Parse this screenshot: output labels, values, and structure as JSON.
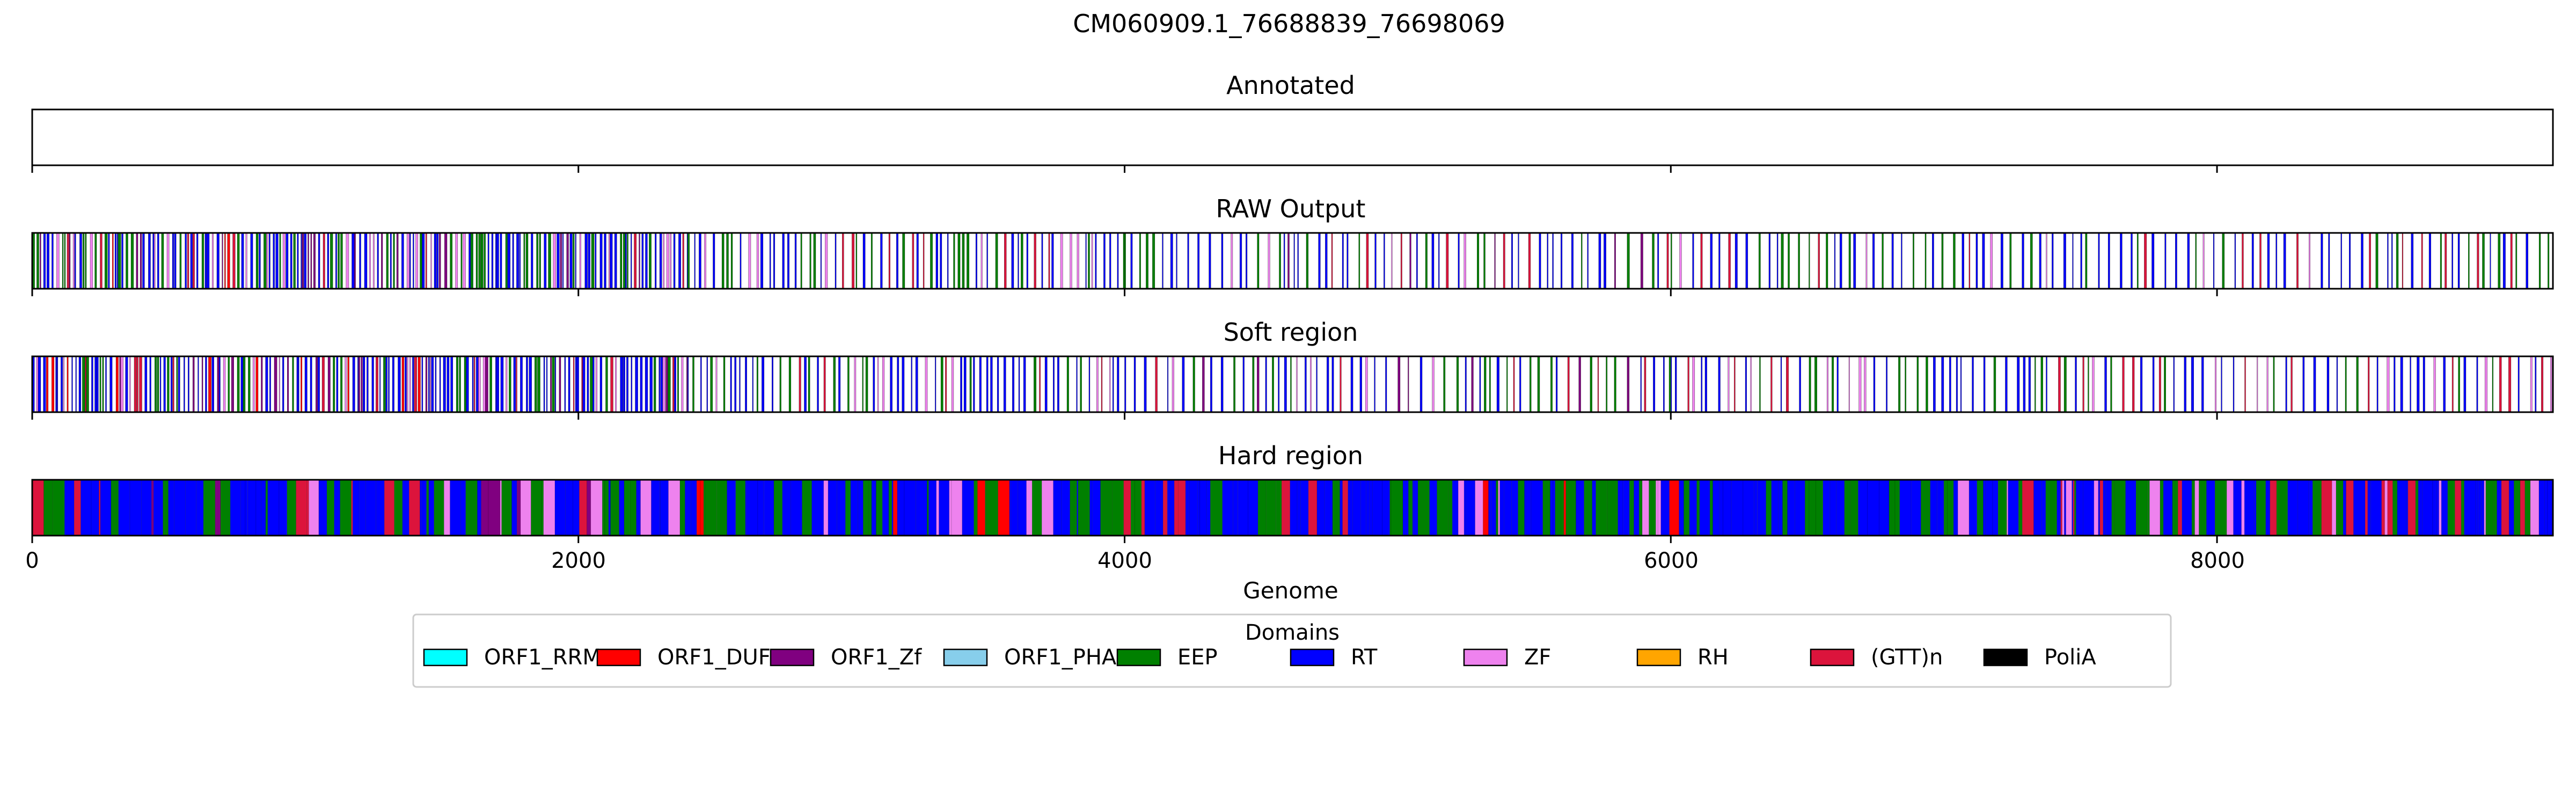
{
  "chart_data": {
    "type": "track",
    "title": "CM060909.1_76688839_76698069",
    "xlabel": "Genome",
    "xlim": [
      0,
      9230
    ],
    "xticks": [
      0,
      2000,
      4000,
      6000,
      8000
    ],
    "xtick_labels": [
      "0",
      "2000",
      "4000",
      "6000",
      "8000"
    ],
    "grid": false,
    "legend": {
      "title": "Domains",
      "placement": "bottom-center",
      "entries": [
        {
          "label": "ORF1_RRM",
          "color": "#00ffff"
        },
        {
          "label": "ORF1_DUF",
          "color": "#ff0000"
        },
        {
          "label": "ORF1_Zf",
          "color": "#800080"
        },
        {
          "label": "ORF1_PHA",
          "color": "#87ceeb"
        },
        {
          "label": "EEP",
          "color": "#008000"
        },
        {
          "label": "RT",
          "color": "#0000ff"
        },
        {
          "label": "ZF",
          "color": "#ee82ee"
        },
        {
          "label": "RH",
          "color": "#ffa500"
        },
        {
          "label": "(GTT)n",
          "color": "#dc143c"
        },
        {
          "label": "PoliA",
          "color": "#000000"
        }
      ]
    },
    "panels": [
      {
        "title": "Annotated",
        "segments": []
      },
      {
        "title": "RAW Output",
        "segments": [
          {
            "start": 0,
            "end": 1700,
            "domains": [
              "RT",
              "EEP",
              "ORF1_Zf",
              "ORF1_DUF",
              "ZF",
              "(GTT)n"
            ],
            "density": "dense"
          },
          {
            "start": 1700,
            "end": 2400,
            "domains": [
              "RT",
              "EEP",
              "ORF1_Zf",
              "ZF",
              "(GTT)n"
            ],
            "density": "dense"
          },
          {
            "start": 2400,
            "end": 4000,
            "domains": [
              "RT",
              "EEP",
              "ZF",
              "(GTT)n"
            ],
            "density": "medium"
          },
          {
            "start": 4000,
            "end": 6000,
            "domains": [
              "RT",
              "EEP",
              "ORF1_Zf",
              "ZF",
              "(GTT)n"
            ],
            "density": "sparse"
          },
          {
            "start": 6000,
            "end": 9230,
            "domains": [
              "RT",
              "EEP",
              "ZF",
              "(GTT)n"
            ],
            "density": "sparse"
          }
        ]
      },
      {
        "title": "Soft region",
        "segments": [
          {
            "start": 0,
            "end": 1700,
            "domains": [
              "RT",
              "EEP",
              "ORF1_Zf",
              "ORF1_DUF",
              "ZF",
              "(GTT)n"
            ],
            "density": "dense"
          },
          {
            "start": 1700,
            "end": 2400,
            "domains": [
              "RT",
              "EEP",
              "ORF1_Zf",
              "ZF",
              "(GTT)n"
            ],
            "density": "dense"
          },
          {
            "start": 2400,
            "end": 4000,
            "domains": [
              "RT",
              "EEP",
              "ZF",
              "(GTT)n"
            ],
            "density": "medium"
          },
          {
            "start": 4000,
            "end": 6000,
            "domains": [
              "RT",
              "EEP",
              "ORF1_Zf",
              "ZF",
              "(GTT)n"
            ],
            "density": "sparse"
          },
          {
            "start": 6000,
            "end": 9230,
            "domains": [
              "RT",
              "EEP",
              "ZF",
              "(GTT)n"
            ],
            "density": "sparse"
          }
        ]
      },
      {
        "title": "Hard region",
        "segments": [
          {
            "start": 0,
            "end": 2300,
            "domains": [
              "RT",
              "EEP",
              "ORF1_Zf",
              "(GTT)n",
              "ZF"
            ],
            "density": "full"
          },
          {
            "start": 2300,
            "end": 3800,
            "domains": [
              "RT",
              "EEP",
              "ORF1_DUF",
              "ZF"
            ],
            "density": "full"
          },
          {
            "start": 3800,
            "end": 5200,
            "domains": [
              "EEP",
              "RT",
              "(GTT)n"
            ],
            "density": "full"
          },
          {
            "start": 5200,
            "end": 7000,
            "domains": [
              "RT",
              "ORF1_DUF",
              "ZF",
              "EEP"
            ],
            "density": "full"
          },
          {
            "start": 7000,
            "end": 9230,
            "domains": [
              "EEP",
              "RT",
              "(GTT)n",
              "ZF"
            ],
            "density": "full"
          }
        ]
      }
    ]
  }
}
